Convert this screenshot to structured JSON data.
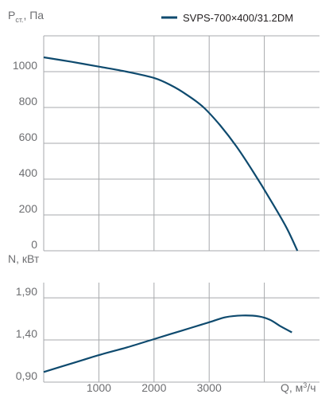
{
  "colors": {
    "series": "#0e4a6e",
    "grid": "#a7a9ac",
    "text": "#6d6e71"
  },
  "legend": {
    "label": "SVPS-700×400/31.2DM"
  },
  "chart_data": [
    {
      "type": "line",
      "name": "pressure",
      "ylabel_main": "P",
      "ylabel_sub": "ст.",
      "ylabel_tail": ", Па",
      "xlim": [
        0,
        5000
      ],
      "ylim": [
        0,
        1200
      ],
      "x_ticks": [
        1000,
        2000,
        3000,
        4000
      ],
      "y_ticks": [
        0,
        200,
        400,
        600,
        800,
        1000,
        1200
      ],
      "y_tick_labels": [
        "0",
        "200",
        "400",
        "600",
        "800",
        "1000"
      ],
      "grid": true,
      "series": [
        {
          "name": "SVPS-700×400/31.2DM",
          "x": [
            0,
            500,
            1000,
            1500,
            2000,
            2300,
            2600,
            2900,
            3200,
            3500,
            3800,
            4100,
            4400,
            4600
          ],
          "y": [
            1080,
            1055,
            1028,
            1000,
            965,
            925,
            870,
            800,
            700,
            580,
            440,
            290,
            130,
            0
          ]
        }
      ]
    },
    {
      "type": "line",
      "name": "power",
      "ylabel": "N, кВт",
      "xlabel_main": "Q, м",
      "xlabel_sup": "3",
      "xlabel_tail": "/ч",
      "xlim": [
        0,
        5000
      ],
      "ylim": [
        0.9,
        2.08
      ],
      "x_ticks": [
        1000,
        2000,
        3000,
        4000
      ],
      "x_tick_labels": [
        "1000",
        "2000",
        "3000"
      ],
      "y_ticks": [
        0.9,
        1.4,
        1.9
      ],
      "y_tick_labels": [
        "0,90",
        "1,40",
        "1,90"
      ],
      "grid": true,
      "series": [
        {
          "name": "SVPS-700×400/31.2DM",
          "x": [
            0,
            500,
            1000,
            1500,
            2000,
            2500,
            3000,
            3300,
            3600,
            3900,
            4100,
            4300,
            4500
          ],
          "y": [
            1.02,
            1.12,
            1.22,
            1.31,
            1.41,
            1.51,
            1.61,
            1.67,
            1.69,
            1.68,
            1.64,
            1.56,
            1.49
          ]
        }
      ]
    }
  ]
}
